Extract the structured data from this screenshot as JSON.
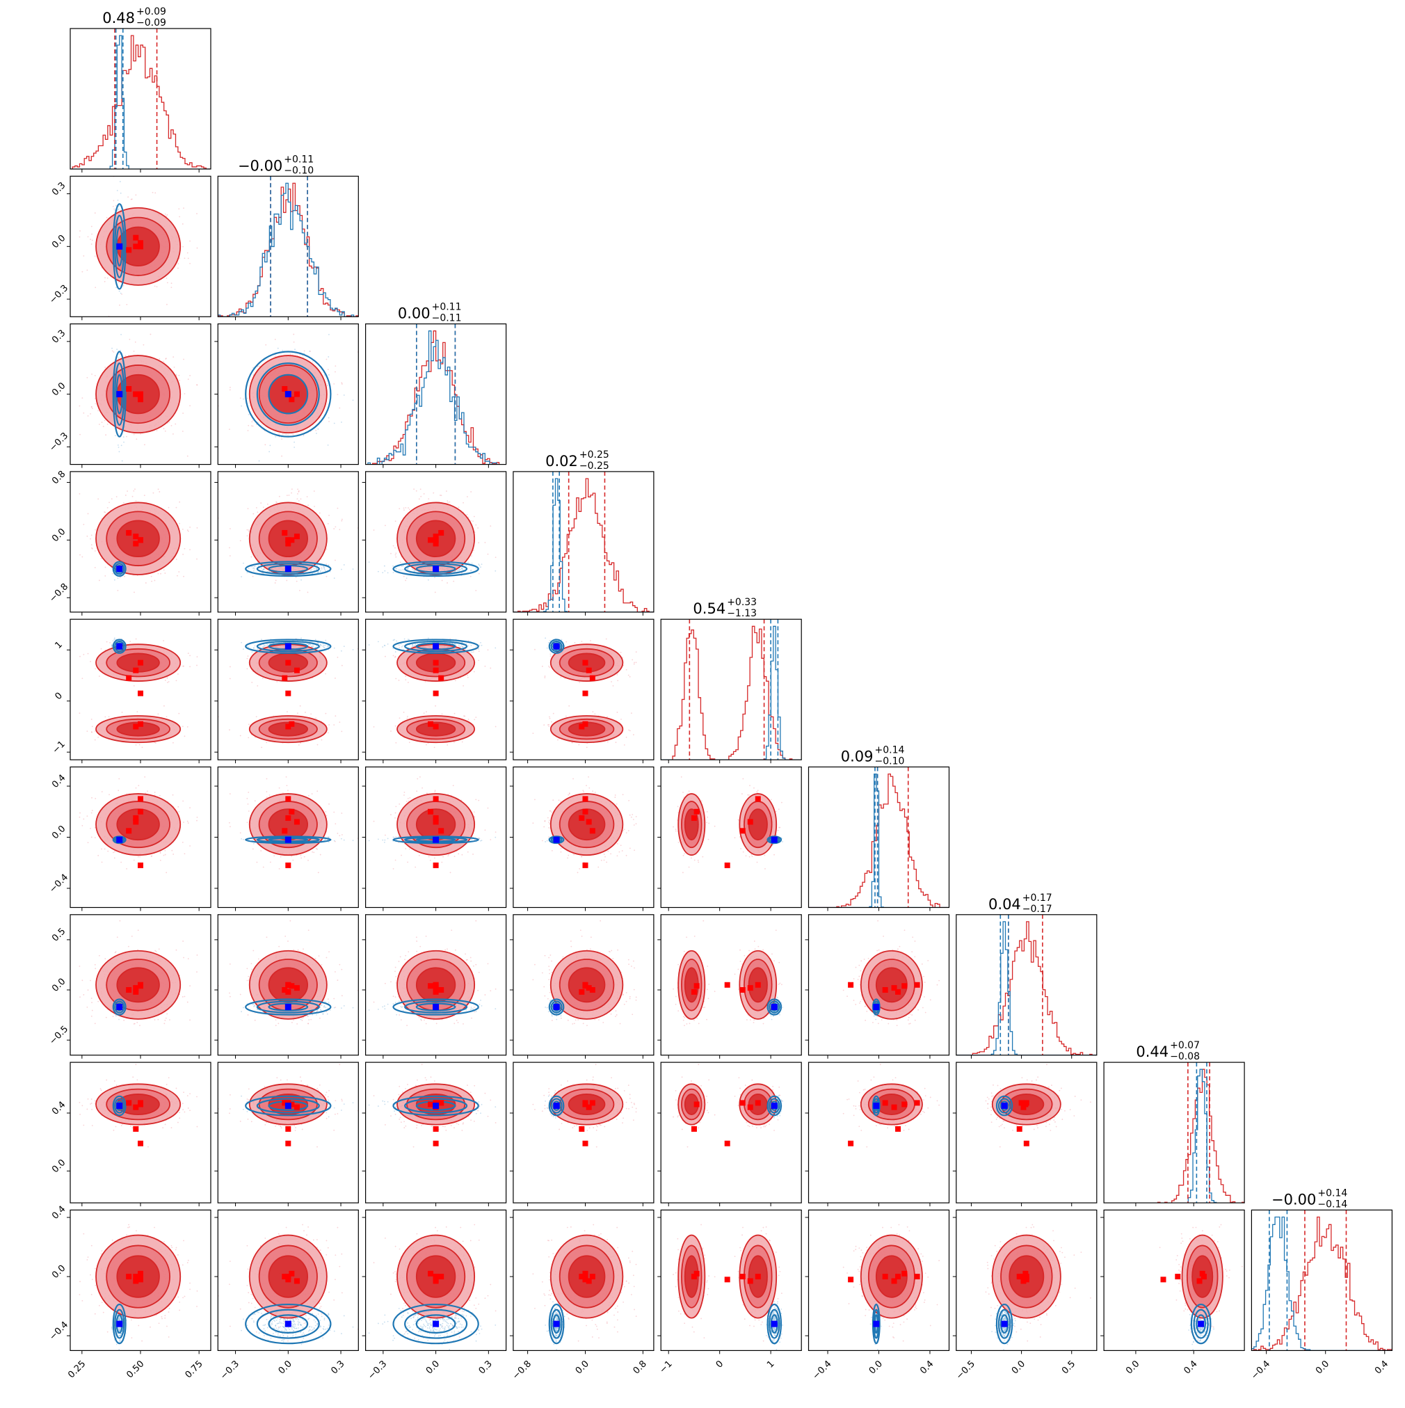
{
  "chart_data": {
    "type": "corner",
    "n_params": 9,
    "titles": [
      {
        "median": "0.48",
        "plus": "+0.09",
        "minus": "−0.09"
      },
      {
        "median": "−0.00",
        "plus": "+0.11",
        "minus": "−0.10"
      },
      {
        "median": "0.00",
        "plus": "+0.11",
        "minus": "−0.11"
      },
      {
        "median": "0.02",
        "plus": "+0.25",
        "minus": "−0.25"
      },
      {
        "median": "0.54",
        "plus": "+0.33",
        "minus": "−1.13"
      },
      {
        "median": "0.09",
        "plus": "+0.14",
        "minus": "−0.10"
      },
      {
        "median": "0.04",
        "plus": "+0.17",
        "minus": "−0.17"
      },
      {
        "median": "0.44",
        "plus": "+0.07",
        "minus": "−0.08"
      },
      {
        "median": "−0.00",
        "plus": "+0.14",
        "minus": "−0.14"
      }
    ],
    "axes": [
      {
        "range": [
          0.2,
          0.8
        ],
        "ticks": [
          0.25,
          0.5,
          0.75
        ],
        "tick_labels": [
          "0.25",
          "0.50",
          "0.75"
        ]
      },
      {
        "range": [
          -0.4,
          0.4
        ],
        "ticks": [
          -0.3,
          0.0,
          0.3
        ],
        "tick_labels": [
          "−0.3",
          "0.0",
          "0.3"
        ]
      },
      {
        "range": [
          -0.4,
          0.4
        ],
        "ticks": [
          -0.3,
          0.0,
          0.3
        ],
        "tick_labels": [
          "−0.3",
          "0.0",
          "0.3"
        ]
      },
      {
        "range": [
          -1.0,
          0.95
        ],
        "ticks": [
          -0.8,
          0.0,
          0.8
        ],
        "tick_labels": [
          "−0.8",
          "0.0",
          "0.8"
        ]
      },
      {
        "range": [
          -1.15,
          1.6
        ],
        "ticks": [
          -1,
          0,
          1
        ],
        "tick_labels": [
          "−1",
          "0",
          "1"
        ]
      },
      {
        "range": [
          -0.55,
          0.55
        ],
        "ticks": [
          -0.4,
          0.0,
          0.4
        ],
        "tick_labels": [
          "−0.4",
          "0.0",
          "0.4"
        ]
      },
      {
        "range": [
          -0.65,
          0.75
        ],
        "ticks": [
          -0.5,
          0.0,
          0.5
        ],
        "tick_labels": [
          "−0.5",
          "0.0",
          "0.5"
        ]
      },
      {
        "range": [
          -0.22,
          0.75
        ],
        "ticks": [
          0.0,
          0.4
        ],
        "tick_labels": [
          "0.0",
          "0.4"
        ]
      },
      {
        "range": [
          -0.5,
          0.45
        ],
        "ticks": [
          -0.4,
          0.0,
          0.4
        ],
        "tick_labels": [
          "−0.4",
          "0.0",
          "0.4"
        ]
      }
    ],
    "red_samples": {
      "color": "#d62728",
      "modes": [
        {
          "means": [
            0.49,
            0.0,
            0.0,
            0.02,
            0.75,
            0.1,
            0.05,
            0.46,
            0.0
          ],
          "sds": [
            0.09,
            0.11,
            0.11,
            0.25,
            0.18,
            0.12,
            0.17,
            0.07,
            0.14
          ],
          "weight": 0.6
        },
        {
          "means": [
            0.49,
            0.0,
            0.0,
            0.02,
            -0.55,
            0.1,
            0.05,
            0.46,
            0.0
          ],
          "sds": [
            0.09,
            0.11,
            0.11,
            0.25,
            0.13,
            0.12,
            0.17,
            0.07,
            0.14
          ],
          "weight": 0.4
        }
      ],
      "quantile_lines": [
        [
          0.39,
          0.57
        ],
        [
          -0.1,
          0.11
        ],
        [
          -0.11,
          0.11
        ],
        [
          -0.23,
          0.27
        ],
        [
          -0.59,
          0.87
        ],
        [
          -0.01,
          0.23
        ],
        [
          -0.13,
          0.21
        ],
        [
          0.36,
          0.51
        ],
        [
          -0.14,
          0.14
        ]
      ]
    },
    "blue_samples": {
      "color": "#1f77b4",
      "means": [
        0.41,
        0.0,
        0.0,
        -0.4,
        1.07,
        -0.02,
        -0.17,
        0.45,
        -0.32
      ],
      "sds": [
        0.012,
        0.11,
        0.11,
        0.045,
        0.06,
        0.012,
        0.035,
        0.03,
        0.06
      ],
      "quantile_lines": [
        [
          0.395,
          0.425
        ],
        [
          -0.1,
          0.11
        ],
        [
          -0.11,
          0.11
        ],
        [
          -0.45,
          -0.36
        ],
        [
          1.0,
          1.14
        ],
        [
          -0.03,
          -0.01
        ],
        [
          -0.21,
          -0.13
        ],
        [
          0.42,
          0.49
        ],
        [
          -0.38,
          -0.26
        ]
      ]
    },
    "truth_marker": {
      "color": "#0000ff",
      "values": [
        0.41,
        0.0,
        0.0,
        -0.4,
        1.07,
        -0.02,
        -0.17,
        0.45,
        -0.32
      ]
    },
    "red_markers": {
      "color": "#ff0000",
      "values": [
        [
          0.5,
          0.0,
          0.0,
          0.0,
          0.75,
          0.3,
          0.05,
          0.47,
          0.0
        ],
        [
          0.48,
          0.05,
          0.0,
          0.05,
          0.6,
          0.12,
          0.02,
          0.44,
          -0.03
        ],
        [
          0.45,
          -0.02,
          0.03,
          0.1,
          0.45,
          0.05,
          0.0,
          0.47,
          0.0
        ],
        [
          0.5,
          0.02,
          -0.03,
          0.0,
          -0.45,
          0.2,
          0.04,
          0.46,
          0.02
        ],
        [
          0.48,
          0.0,
          0.0,
          -0.05,
          -0.5,
          0.15,
          -0.02,
          0.29,
          0.0
        ],
        [
          0.5,
          0.0,
          0.0,
          0.0,
          0.15,
          -0.22,
          0.05,
          0.19,
          -0.02
        ]
      ]
    },
    "grid": false
  }
}
